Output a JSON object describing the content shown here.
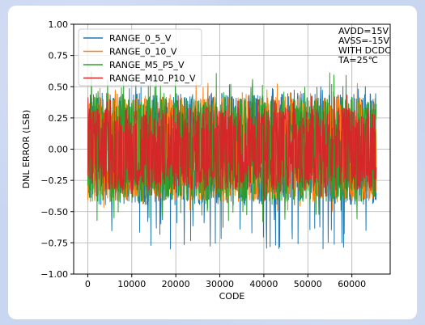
{
  "chart_data": {
    "type": "line",
    "xlabel": "CODE",
    "ylabel": "DNL ERROR (LSB)",
    "xlim": [
      -3200,
      68700
    ],
    "ylim": [
      -1.0,
      1.0
    ],
    "x_ticks": [
      0,
      10000,
      20000,
      30000,
      40000,
      50000,
      60000
    ],
    "x_tick_labels": [
      "0",
      "10000",
      "20000",
      "30000",
      "40000",
      "50000",
      "60000"
    ],
    "y_ticks": [
      -1.0,
      -0.75,
      -0.5,
      -0.25,
      0.0,
      0.25,
      0.5,
      0.75,
      1.0
    ],
    "y_tick_labels": [
      "−1.00",
      "−0.75",
      "−0.50",
      "−0.25",
      "0.00",
      "0.25",
      "0.50",
      "0.75",
      "1.00"
    ],
    "grid": true,
    "legend_position": "top-left",
    "x_range": [
      0,
      65535
    ],
    "series": [
      {
        "name": "RANGE_0_5_V",
        "color": "#1f77b4",
        "typical_band": [
          -0.45,
          0.45
        ],
        "max": 0.52,
        "min": -0.8
      },
      {
        "name": "RANGE_0_10_V",
        "color": "#ff7f0e",
        "typical_band": [
          -0.4,
          0.42
        ],
        "max": 0.55,
        "min": -0.5
      },
      {
        "name": "RANGE_M5_P5_V",
        "color": "#2ca02c",
        "typical_band": [
          -0.42,
          0.42
        ],
        "max": 0.62,
        "min": -0.58
      },
      {
        "name": "RANGE_M10_P10_V",
        "color": "#d62728",
        "typical_band": [
          -0.3,
          0.33
        ],
        "max": 0.45,
        "min": -0.42
      }
    ],
    "annotation_lines": [
      "AVDD=15V",
      "AVSS=-15V",
      "WITH DCDC",
      "TA=25℃"
    ]
  }
}
